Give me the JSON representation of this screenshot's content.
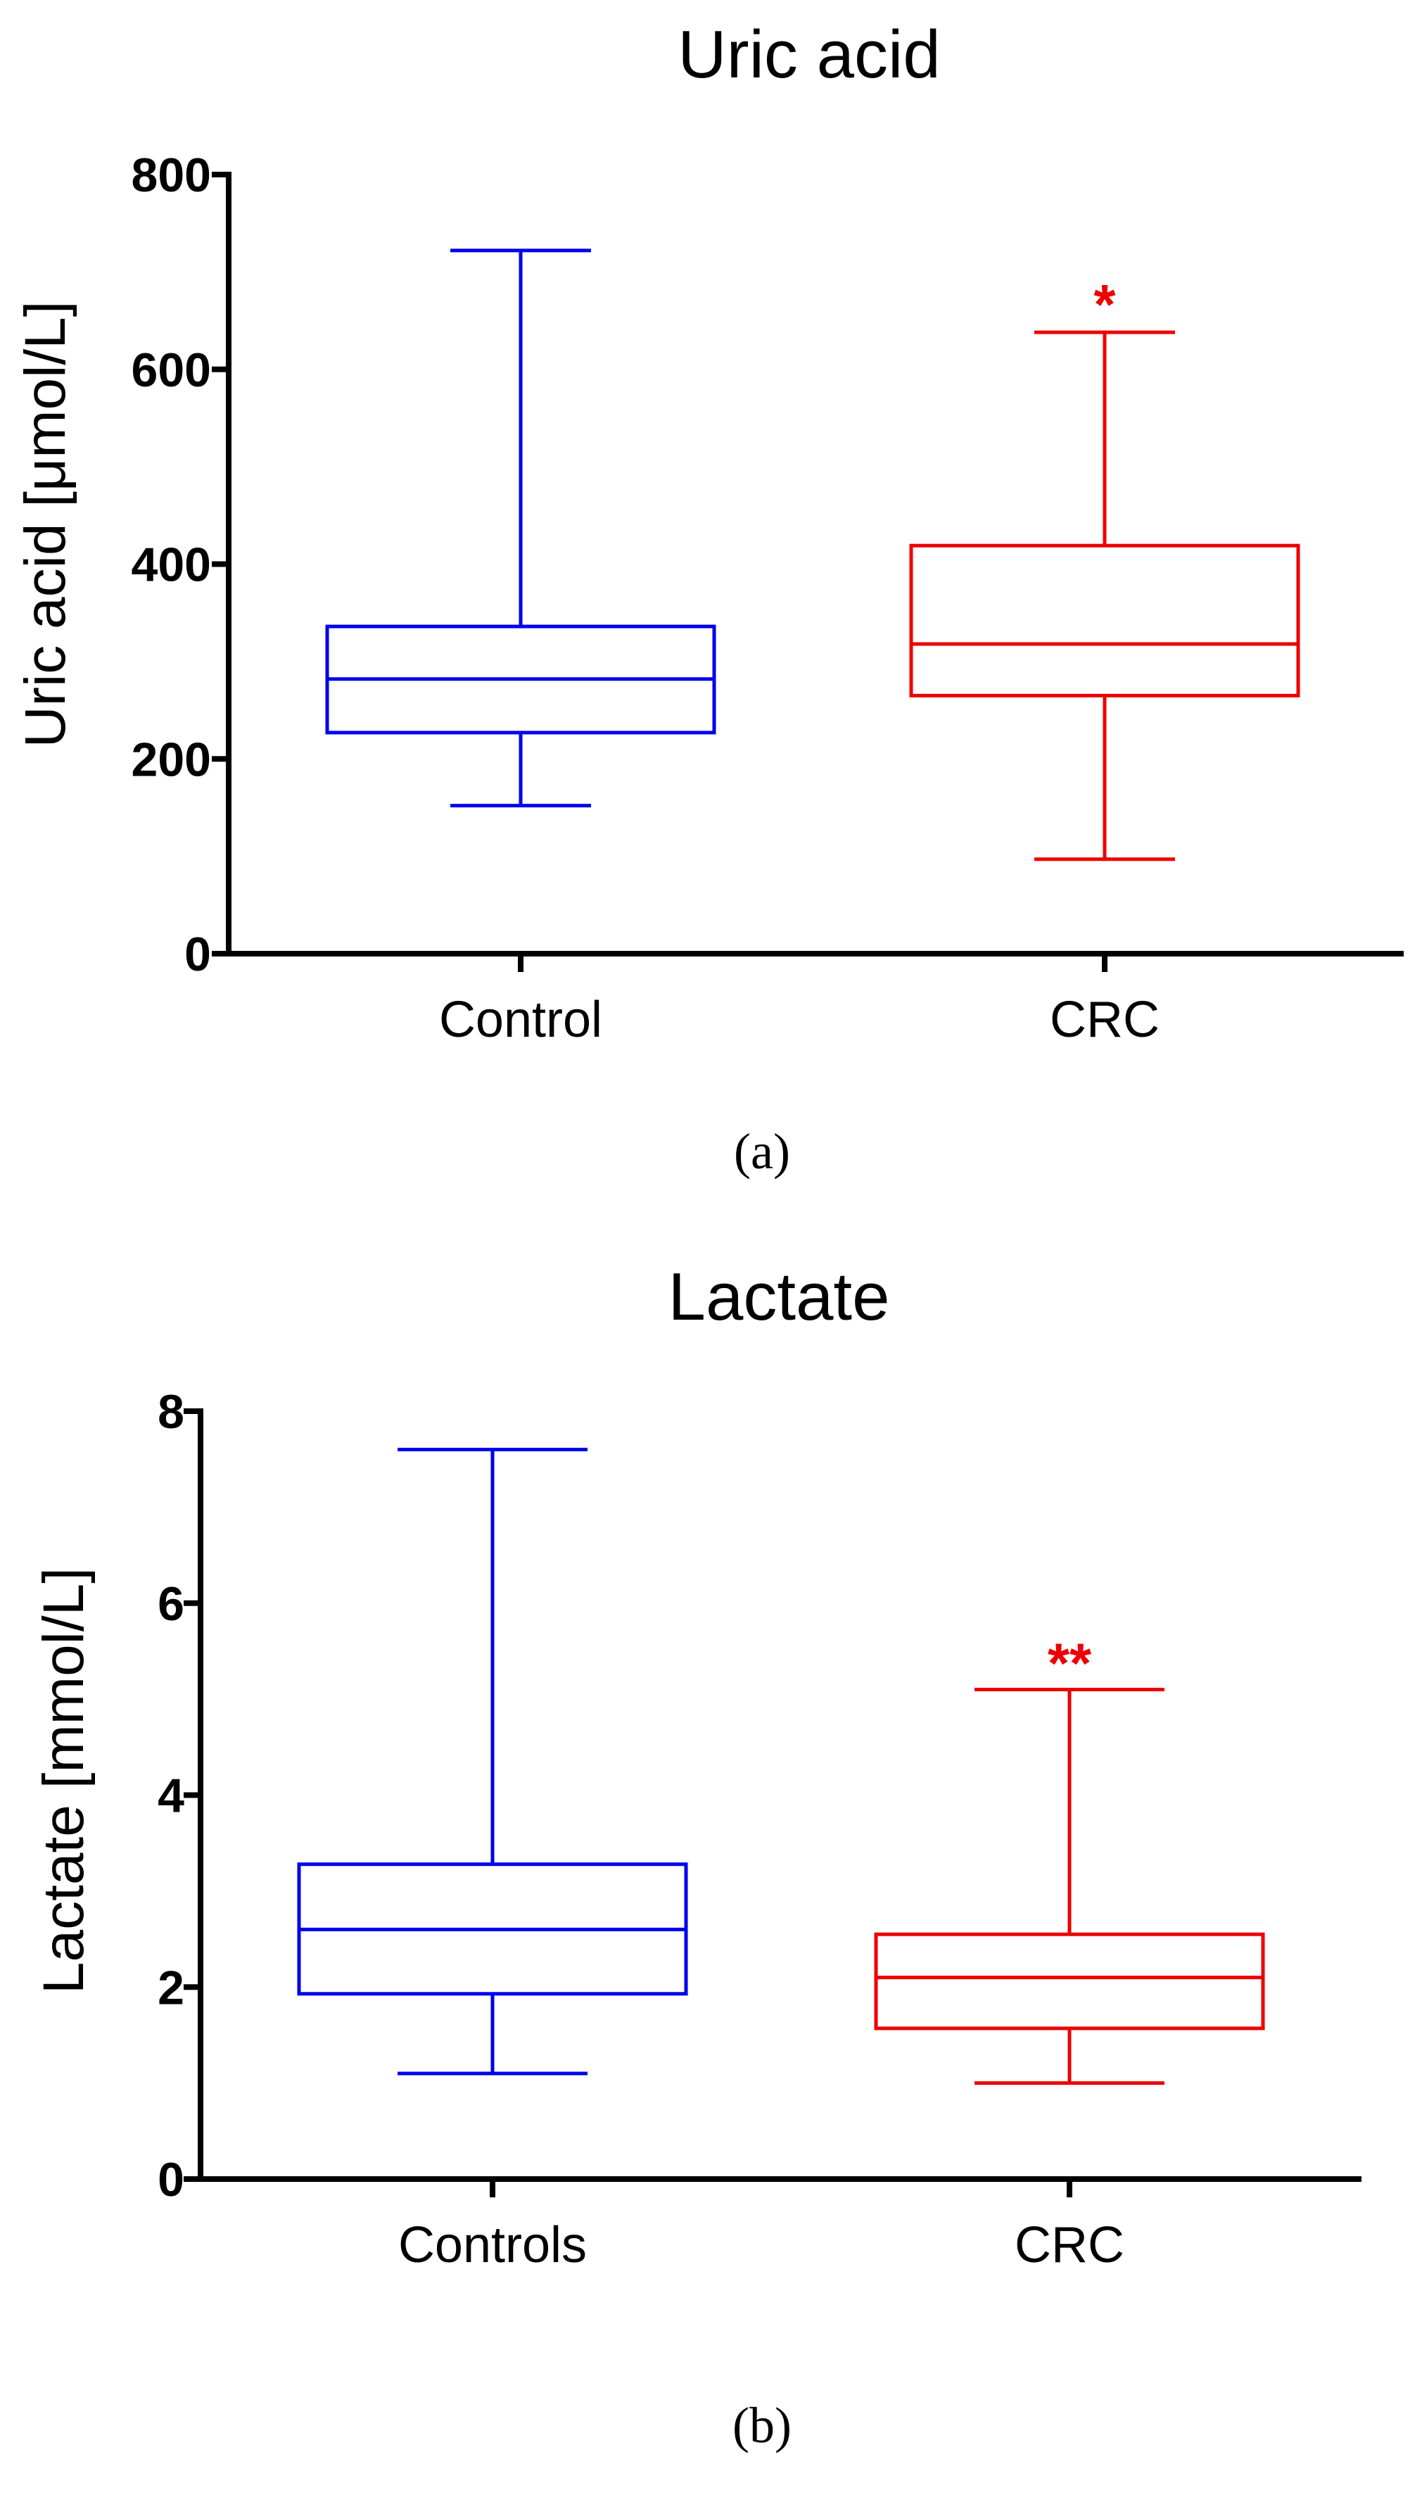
{
  "chart_data": [
    {
      "type": "box",
      "title": "Uric acid",
      "ylabel": "Uric acid [μmol/L]",
      "ylim": [
        0,
        800
      ],
      "yticks": [
        0,
        200,
        400,
        600,
        800
      ],
      "categories": [
        "Control",
        "CRC"
      ],
      "series": [
        {
          "category": "Control",
          "color": "#0000ee",
          "min": 152,
          "q1": 227,
          "median": 282,
          "q3": 336,
          "max": 722,
          "significance": ""
        },
        {
          "category": "CRC",
          "color": "#ee0000",
          "min": 97,
          "q1": 265,
          "median": 318,
          "q3": 419,
          "max": 638,
          "significance": "*"
        }
      ],
      "panel_label": "(a)"
    },
    {
      "type": "box",
      "title": "Lactate",
      "ylabel": "Lactate [mmol/L]",
      "ylim": [
        0,
        8
      ],
      "yticks": [
        0,
        2,
        4,
        6,
        8
      ],
      "categories": [
        "Controls",
        "CRC"
      ],
      "series": [
        {
          "category": "Controls",
          "color": "#0000ee",
          "min": 1.1,
          "q1": 1.93,
          "median": 2.6,
          "q3": 3.28,
          "max": 7.6,
          "significance": ""
        },
        {
          "category": "CRC",
          "color": "#ee0000",
          "min": 1.0,
          "q1": 1.57,
          "median": 2.1,
          "q3": 2.55,
          "max": 5.1,
          "significance": "**"
        }
      ],
      "panel_label": "(b)"
    }
  ]
}
